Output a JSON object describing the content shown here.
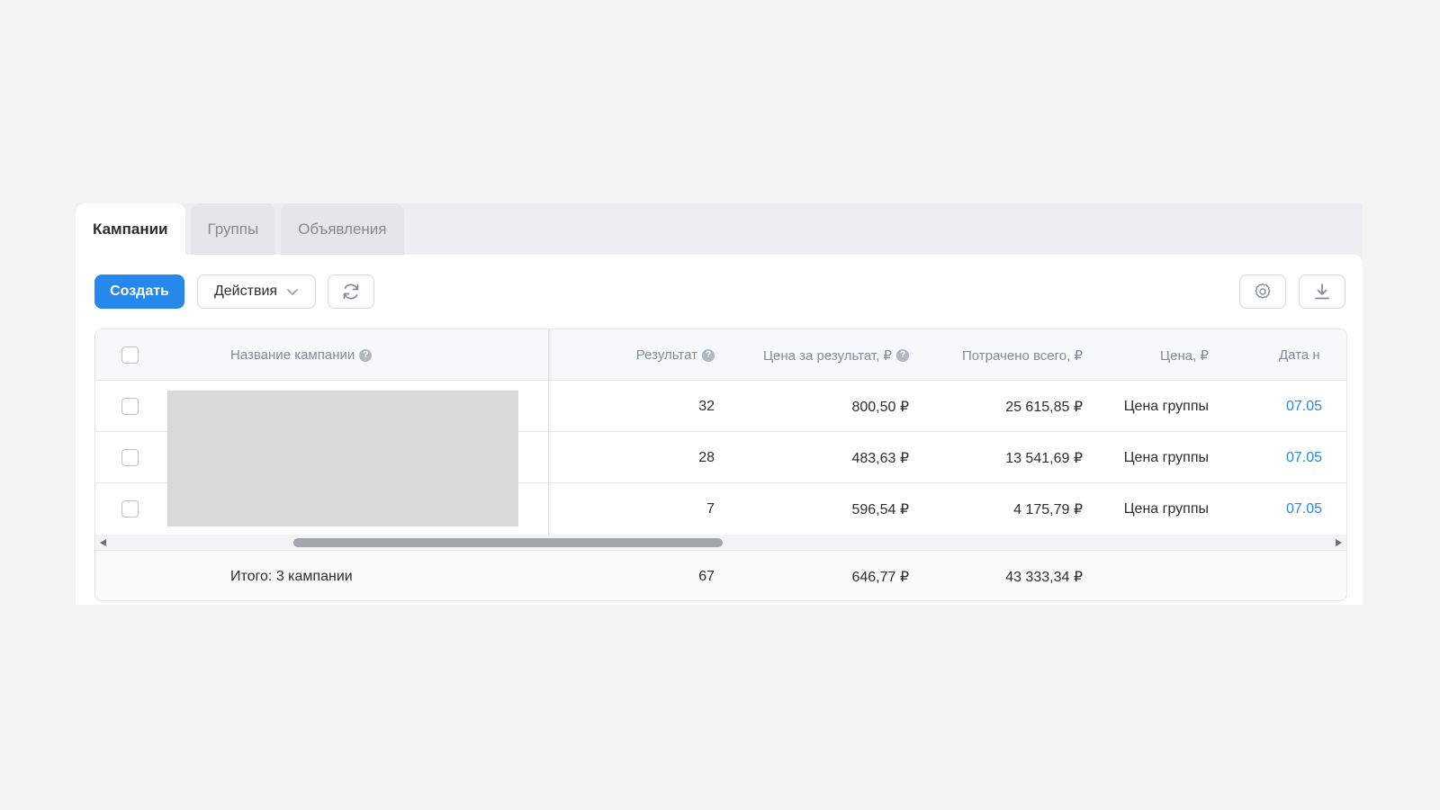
{
  "tabs": [
    {
      "label": "Кампании",
      "active": true
    },
    {
      "label": "Группы",
      "active": false
    },
    {
      "label": "Объявления",
      "active": false
    }
  ],
  "toolbar": {
    "create_label": "Создать",
    "actions_label": "Действия",
    "refresh_icon": "refresh-icon",
    "settings_icon": "gear-icon",
    "download_icon": "download-icon"
  },
  "columns": {
    "name": "Название кампании",
    "result": "Результат",
    "cost_per_result": "Цена за результат, ₽",
    "spent_total": "Потрачено всего, ₽",
    "price": "Цена, ₽",
    "date": "Дата н"
  },
  "rows": [
    {
      "result": "32",
      "cost_per_result": "800,50 ₽",
      "spent_total": "25 615,85 ₽",
      "price": "Цена группы",
      "date": "07.05"
    },
    {
      "result": "28",
      "cost_per_result": "483,63 ₽",
      "spent_total": "13 541,69 ₽",
      "price": "Цена группы",
      "date": "07.05"
    },
    {
      "result": "7",
      "cost_per_result": "596,54 ₽",
      "spent_total": "4 175,79 ₽",
      "price": "Цена группы",
      "date": "07.05"
    }
  ],
  "totals": {
    "label": "Итого: 3 кампании",
    "result": "67",
    "cost_per_result": "646,77 ₽",
    "spent_total": "43 333,34 ₽"
  },
  "colors": {
    "primary": "#2688eb",
    "link": "#2688eb",
    "redacted": "#d9d9d9"
  }
}
